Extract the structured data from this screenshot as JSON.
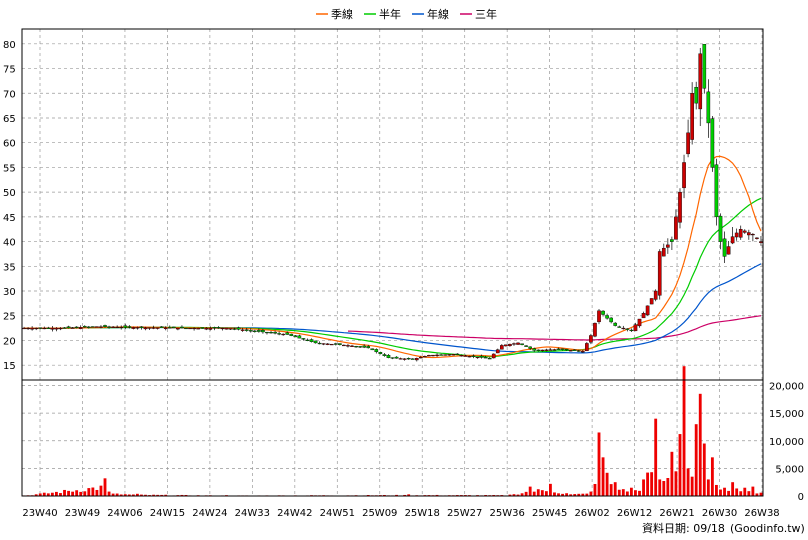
{
  "chart_data": {
    "type": "candlestick",
    "title": "",
    "legend": {
      "placement": "top-center",
      "items": [
        {
          "name": "季線",
          "color": "#ff6600"
        },
        {
          "name": "半年",
          "color": "#00cc00"
        },
        {
          "name": "年線",
          "color": "#0055cc"
        },
        {
          "name": "三年",
          "color": "#cc0066"
        }
      ]
    },
    "x_ticks": [
      "23W40",
      "23W49",
      "24W06",
      "24W15",
      "24W24",
      "24W33",
      "24W42",
      "24W51",
      "25W09",
      "25W18",
      "25W27",
      "25W36",
      "25W45",
      "26W02",
      "26W12",
      "26W21",
      "26W30",
      "26W38"
    ],
    "price_axis": {
      "ticks": [
        "15",
        "20",
        "25",
        "30",
        "35",
        "40",
        "45",
        "50",
        "55",
        "60",
        "65",
        "70",
        "75",
        "80"
      ],
      "range": [
        12,
        83
      ],
      "side": "left"
    },
    "volume_axis": {
      "ticks": [
        "0",
        "5,000",
        "10,000",
        "15,000",
        "20,000"
      ],
      "range": [
        0,
        21000
      ],
      "side": "right"
    },
    "grid": true,
    "colors": {
      "up": "#cc0000",
      "down": "#00cc00",
      "volume": "#ee0000",
      "grid": "#999999"
    },
    "source_label": "資料日期: 09/18",
    "source_site": "(Goodinfo.tw)",
    "price_anchors": [
      [
        0,
        22.5
      ],
      [
        10,
        22.5
      ],
      [
        18,
        22.8
      ],
      [
        30,
        22.6
      ],
      [
        40,
        22.5
      ],
      [
        50,
        22.5
      ],
      [
        58,
        21.8
      ],
      [
        65,
        21.2
      ],
      [
        72,
        19.5
      ],
      [
        80,
        19.0
      ],
      [
        85,
        18.5
      ],
      [
        90,
        16.5
      ],
      [
        96,
        16.2
      ],
      [
        100,
        17.0
      ],
      [
        106,
        17.2
      ],
      [
        110,
        16.8
      ],
      [
        115,
        16.4
      ],
      [
        118,
        19.0
      ],
      [
        122,
        19.5
      ],
      [
        126,
        18.0
      ],
      [
        132,
        18.2
      ],
      [
        138,
        17.8
      ],
      [
        140,
        21.0
      ],
      [
        142,
        26.0
      ],
      [
        146,
        23.0
      ],
      [
        150,
        22.0
      ],
      [
        153,
        25.5
      ],
      [
        156,
        30.0
      ],
      [
        157,
        38.0
      ],
      [
        160,
        40.0
      ],
      [
        162,
        50.0
      ],
      [
        164,
        62.0
      ],
      [
        165,
        70.0
      ],
      [
        166,
        68.0
      ],
      [
        167,
        78.0
      ],
      [
        169,
        64.0
      ],
      [
        170,
        55.0
      ],
      [
        171,
        45.0
      ],
      [
        172,
        40.0
      ],
      [
        173,
        37.0
      ],
      [
        175,
        41.0
      ],
      [
        177,
        42.5
      ],
      [
        180,
        41.5
      ],
      [
        182,
        40.0
      ]
    ],
    "volume_anchors": [
      [
        0,
        100
      ],
      [
        20,
        3200
      ],
      [
        21,
        800
      ],
      [
        28,
        400
      ],
      [
        50,
        150
      ],
      [
        95,
        300
      ],
      [
        120,
        250
      ],
      [
        125,
        1700
      ],
      [
        130,
        2200
      ],
      [
        134,
        500
      ],
      [
        140,
        800
      ],
      [
        142,
        11500
      ],
      [
        143,
        7000
      ],
      [
        144,
        4200
      ],
      [
        146,
        2500
      ],
      [
        150,
        1500
      ],
      [
        153,
        3000
      ],
      [
        156,
        14000
      ],
      [
        157,
        3000
      ],
      [
        160,
        8000
      ],
      [
        163,
        23500
      ],
      [
        164,
        5000
      ],
      [
        165,
        3500
      ],
      [
        166,
        13000
      ],
      [
        167,
        18500
      ],
      [
        168,
        9500
      ],
      [
        169,
        3000
      ],
      [
        170,
        7000
      ],
      [
        171,
        2000
      ],
      [
        173,
        1500
      ],
      [
        175,
        2500
      ],
      [
        178,
        1500
      ],
      [
        180,
        1700
      ],
      [
        182,
        600
      ]
    ],
    "bars_total": 183
  }
}
